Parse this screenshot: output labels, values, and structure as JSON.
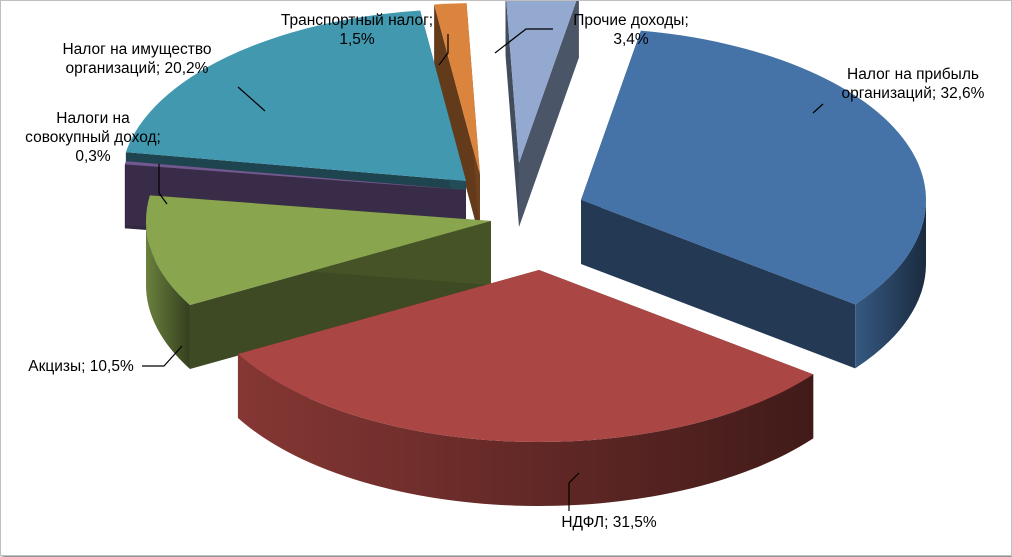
{
  "chart_data": {
    "type": "pie",
    "title": "",
    "legend": "none",
    "slices": [
      {
        "key": "profit",
        "lines": [
          "Налог на прибыль",
          "организаций; 32,6%"
        ],
        "value": 32.6,
        "color": "#4572A7"
      },
      {
        "key": "ndfl",
        "lines": [
          "НДФЛ; 31,5%"
        ],
        "value": 31.5,
        "color": "#AA4643"
      },
      {
        "key": "excise",
        "lines": [
          "Акцизы; 10,5%"
        ],
        "value": 10.5,
        "color": "#89A54E"
      },
      {
        "key": "aggregate",
        "lines": [
          "Налоги на",
          "совокупный доход;",
          "0,3%"
        ],
        "value": 0.3,
        "color": "#71588F"
      },
      {
        "key": "property",
        "lines": [
          "Налог на имущество",
          "организаций; 20,2%"
        ],
        "value": 20.2,
        "color": "#4198AF"
      },
      {
        "key": "transport",
        "lines": [
          "Транспортный налог;",
          "1,5%"
        ],
        "value": 1.5,
        "color": "#DB843D"
      },
      {
        "key": "other",
        "lines": [
          "Прочие доходы;",
          "3,4%"
        ],
        "value": 3.4,
        "color": "#93A9CF"
      }
    ]
  }
}
